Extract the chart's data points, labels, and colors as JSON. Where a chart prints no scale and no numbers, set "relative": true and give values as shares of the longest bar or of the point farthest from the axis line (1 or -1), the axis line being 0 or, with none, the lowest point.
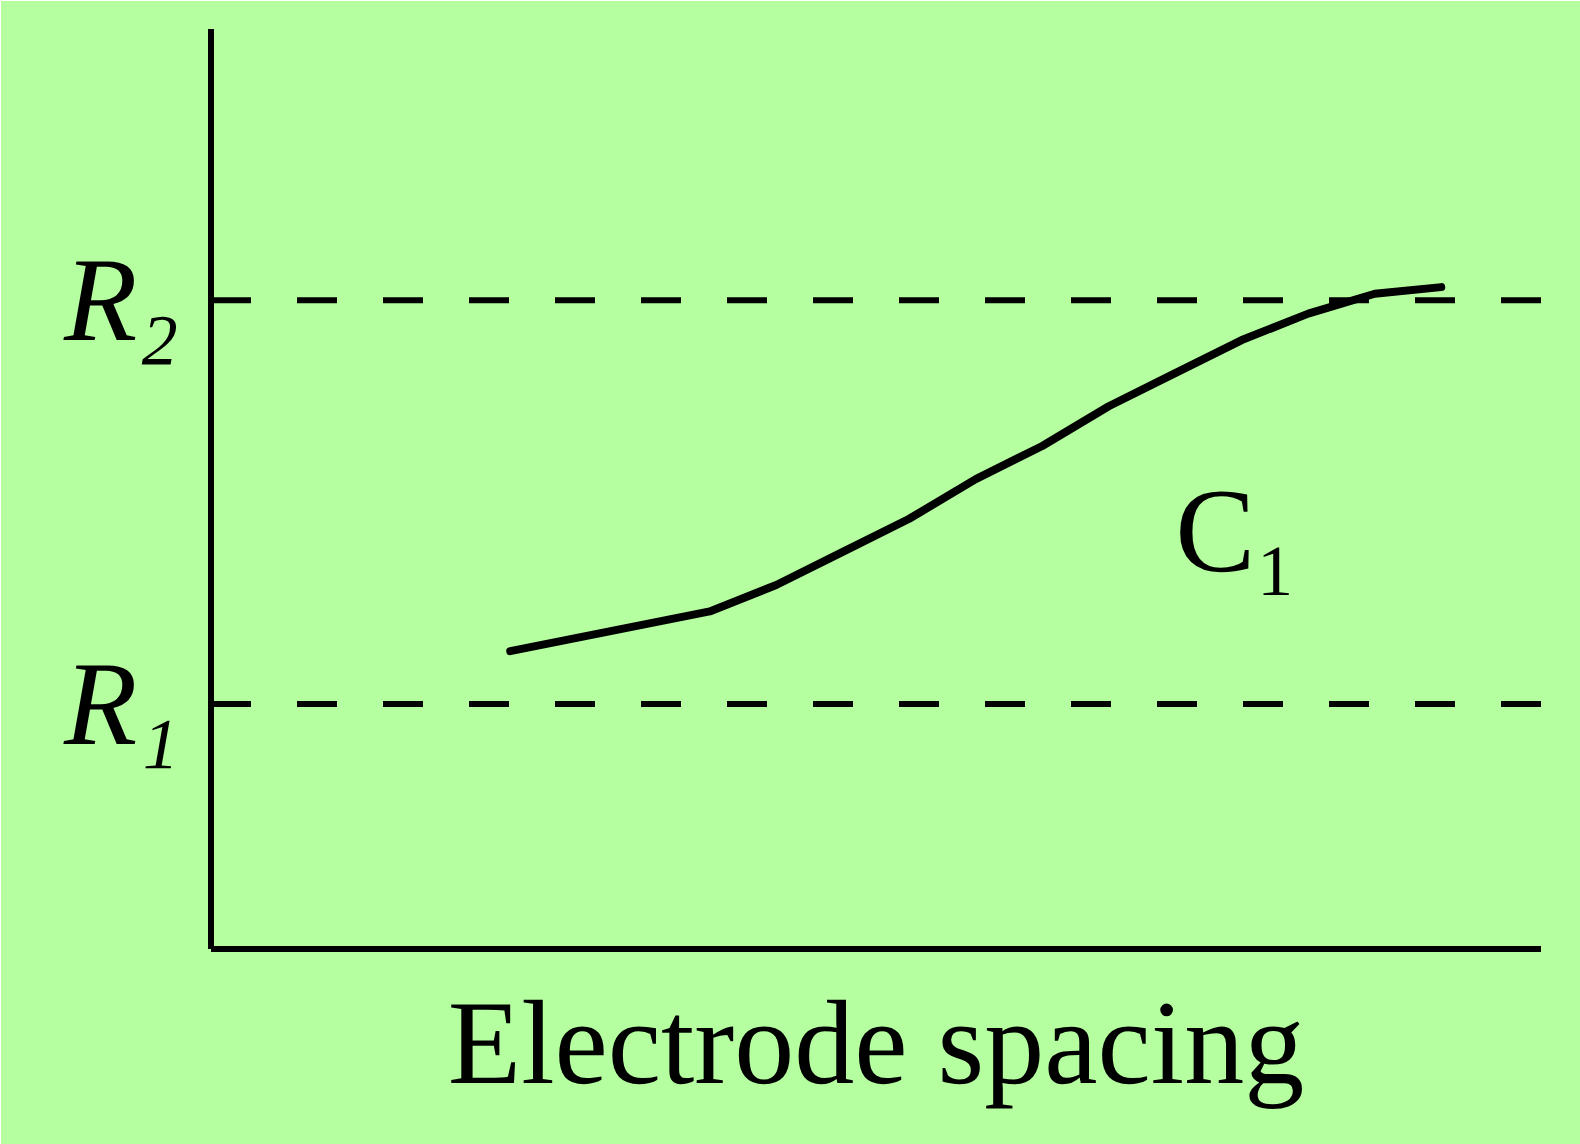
{
  "chart_data": {
    "type": "line",
    "xlabel": "Electrode spacing",
    "relative": true,
    "categories": [
      null,
      null,
      null,
      null,
      null,
      null,
      null,
      null,
      null,
      null,
      null,
      null,
      null,
      null,
      null,
      null,
      null,
      null,
      null,
      null
    ],
    "series": [
      {
        "name": "C₁",
        "color": "#000000",
        "values": [
          null,
          null,
          null,
          null,
          0.45,
          0.47,
          0.49,
          0.51,
          0.55,
          0.6,
          0.65,
          0.71,
          0.76,
          0.82,
          0.87,
          0.92,
          0.96,
          0.99,
          1.0,
          null
        ]
      }
    ],
    "ref_lines": [
      {
        "axis": "y",
        "value": 0.98,
        "label": "R₂",
        "color": "#000000",
        "line_style": "dashed"
      },
      {
        "axis": "y",
        "value": 0.37,
        "label": "R₁",
        "color": "#000000",
        "line_style": "dashed"
      }
    ]
  }
}
